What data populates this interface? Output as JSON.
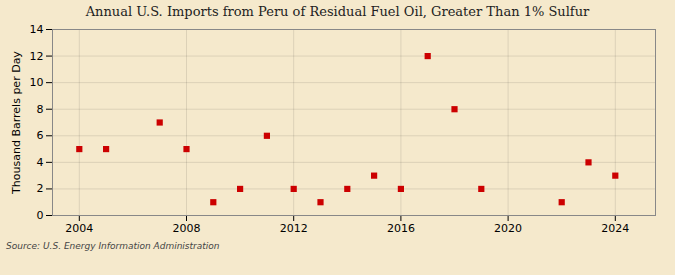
{
  "chart_data": {
    "type": "scatter",
    "title": "Annual U.S. Imports from Peru of Residual Fuel Oil, Greater Than 1% Sulfur",
    "ylabel": "Thousand Barrels per Day",
    "source": "Source: U.S. Energy Information Administration",
    "x": [
      2004,
      2005,
      2007,
      2008,
      2009,
      2010,
      2011,
      2012,
      2013,
      2014,
      2015,
      2016,
      2017,
      2018,
      2019,
      2022,
      2023,
      2024
    ],
    "values": [
      5,
      5,
      7,
      5,
      1,
      2,
      6,
      2,
      1,
      2,
      3,
      2,
      12,
      8,
      2,
      1,
      4,
      3
    ],
    "color": "#cc0000",
    "marker": "square",
    "xlim": [
      2003.0,
      2025.5
    ],
    "xticks": [
      2004,
      2008,
      2012,
      2016,
      2020,
      2024
    ],
    "ylim": [
      0,
      14
    ],
    "yticks": [
      0,
      2,
      4,
      6,
      8,
      10,
      12,
      14
    ],
    "grid": true
  }
}
